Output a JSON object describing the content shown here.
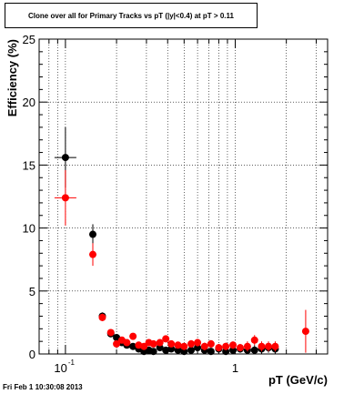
{
  "chart_data": {
    "type": "scatter",
    "title": "Clone  over all for Primary Tracks vs pT (|y|<0.4) at pT > 0.11",
    "xlabel": "pT (GeV/c)",
    "ylabel": "Efficiency (%)",
    "xscale": "log",
    "xlim": [
      0.07,
      3.5
    ],
    "ylim": [
      0,
      25
    ],
    "grid": true,
    "x_tick_labels": [
      "10",
      "-1",
      "1"
    ],
    "y_tick_labels": [
      "0",
      "5",
      "10",
      "15",
      "20",
      "25"
    ],
    "series": [
      {
        "color": "#000000",
        "points": [
          {
            "x": 0.1,
            "y": 15.6,
            "yerr": 2.4
          },
          {
            "x": 0.145,
            "y": 9.5,
            "yerr": 0.8
          },
          {
            "x": 0.165,
            "y": 3.0,
            "yerr": 0.3
          },
          {
            "x": 0.185,
            "y": 1.6,
            "yerr": 0.2
          },
          {
            "x": 0.2,
            "y": 1.3,
            "yerr": 0.2
          },
          {
            "x": 0.215,
            "y": 0.9,
            "yerr": 0.2
          },
          {
            "x": 0.23,
            "y": 0.7,
            "yerr": 0.2
          },
          {
            "x": 0.25,
            "y": 0.6,
            "yerr": 0.2
          },
          {
            "x": 0.27,
            "y": 0.4,
            "yerr": 0.2
          },
          {
            "x": 0.29,
            "y": 0.2,
            "yerr": 0.2
          },
          {
            "x": 0.31,
            "y": 0.3,
            "yerr": 0.2
          },
          {
            "x": 0.33,
            "y": 0.2,
            "yerr": 0.2
          },
          {
            "x": 0.36,
            "y": 0.5,
            "yerr": 0.2
          },
          {
            "x": 0.39,
            "y": 0.3,
            "yerr": 0.2
          },
          {
            "x": 0.42,
            "y": 0.4,
            "yerr": 0.2
          },
          {
            "x": 0.46,
            "y": 0.3,
            "yerr": 0.2
          },
          {
            "x": 0.5,
            "y": 0.2,
            "yerr": 0.2
          },
          {
            "x": 0.55,
            "y": 0.3,
            "yerr": 0.2
          },
          {
            "x": 0.6,
            "y": 0.5,
            "yerr": 0.3
          },
          {
            "x": 0.66,
            "y": 0.3,
            "yerr": 0.3
          },
          {
            "x": 0.72,
            "y": 0.2,
            "yerr": 0.3
          },
          {
            "x": 0.8,
            "y": 0.4,
            "yerr": 0.3
          },
          {
            "x": 0.88,
            "y": 0.2,
            "yerr": 0.3
          },
          {
            "x": 0.97,
            "y": 0.3,
            "yerr": 0.3
          },
          {
            "x": 1.07,
            "y": 0.4,
            "yerr": 0.3
          },
          {
            "x": 1.18,
            "y": 0.3,
            "yerr": 0.4
          },
          {
            "x": 1.3,
            "y": 0.3,
            "yerr": 0.4
          },
          {
            "x": 1.43,
            "y": 0.4,
            "yerr": 0.4
          },
          {
            "x": 1.57,
            "y": 0.5,
            "yerr": 0.4
          },
          {
            "x": 1.72,
            "y": 0.4,
            "yerr": 0.4
          }
        ]
      },
      {
        "color": "#ff0000",
        "points": [
          {
            "x": 0.1,
            "y": 12.4,
            "yerr": 2.2
          },
          {
            "x": 0.145,
            "y": 7.9,
            "yerr": 0.9
          },
          {
            "x": 0.165,
            "y": 2.9,
            "yerr": 0.3
          },
          {
            "x": 0.185,
            "y": 1.7,
            "yerr": 0.2
          },
          {
            "x": 0.2,
            "y": 0.8,
            "yerr": 0.2
          },
          {
            "x": 0.215,
            "y": 1.1,
            "yerr": 0.2
          },
          {
            "x": 0.23,
            "y": 0.9,
            "yerr": 0.2
          },
          {
            "x": 0.25,
            "y": 1.4,
            "yerr": 0.2
          },
          {
            "x": 0.27,
            "y": 0.7,
            "yerr": 0.2
          },
          {
            "x": 0.29,
            "y": 0.6,
            "yerr": 0.2
          },
          {
            "x": 0.31,
            "y": 0.9,
            "yerr": 0.2
          },
          {
            "x": 0.33,
            "y": 0.8,
            "yerr": 0.2
          },
          {
            "x": 0.36,
            "y": 0.9,
            "yerr": 0.2
          },
          {
            "x": 0.39,
            "y": 1.2,
            "yerr": 0.2
          },
          {
            "x": 0.42,
            "y": 0.8,
            "yerr": 0.2
          },
          {
            "x": 0.46,
            "y": 0.7,
            "yerr": 0.2
          },
          {
            "x": 0.5,
            "y": 0.6,
            "yerr": 0.2
          },
          {
            "x": 0.55,
            "y": 0.8,
            "yerr": 0.3
          },
          {
            "x": 0.6,
            "y": 0.9,
            "yerr": 0.3
          },
          {
            "x": 0.66,
            "y": 0.6,
            "yerr": 0.3
          },
          {
            "x": 0.72,
            "y": 0.8,
            "yerr": 0.3
          },
          {
            "x": 0.8,
            "y": 0.5,
            "yerr": 0.3
          },
          {
            "x": 0.88,
            "y": 0.6,
            "yerr": 0.3
          },
          {
            "x": 0.97,
            "y": 0.7,
            "yerr": 0.3
          },
          {
            "x": 1.07,
            "y": 0.5,
            "yerr": 0.3
          },
          {
            "x": 1.18,
            "y": 0.6,
            "yerr": 0.4
          },
          {
            "x": 1.3,
            "y": 1.1,
            "yerr": 0.4
          },
          {
            "x": 1.43,
            "y": 0.6,
            "yerr": 0.4
          },
          {
            "x": 1.57,
            "y": 0.6,
            "yerr": 0.4
          },
          {
            "x": 1.72,
            "y": 0.6,
            "yerr": 0.4
          },
          {
            "x": 2.6,
            "y": 1.8,
            "yerr": 1.7
          }
        ]
      }
    ]
  },
  "footer_text": "Fri Feb  1 10:30:08 2013"
}
